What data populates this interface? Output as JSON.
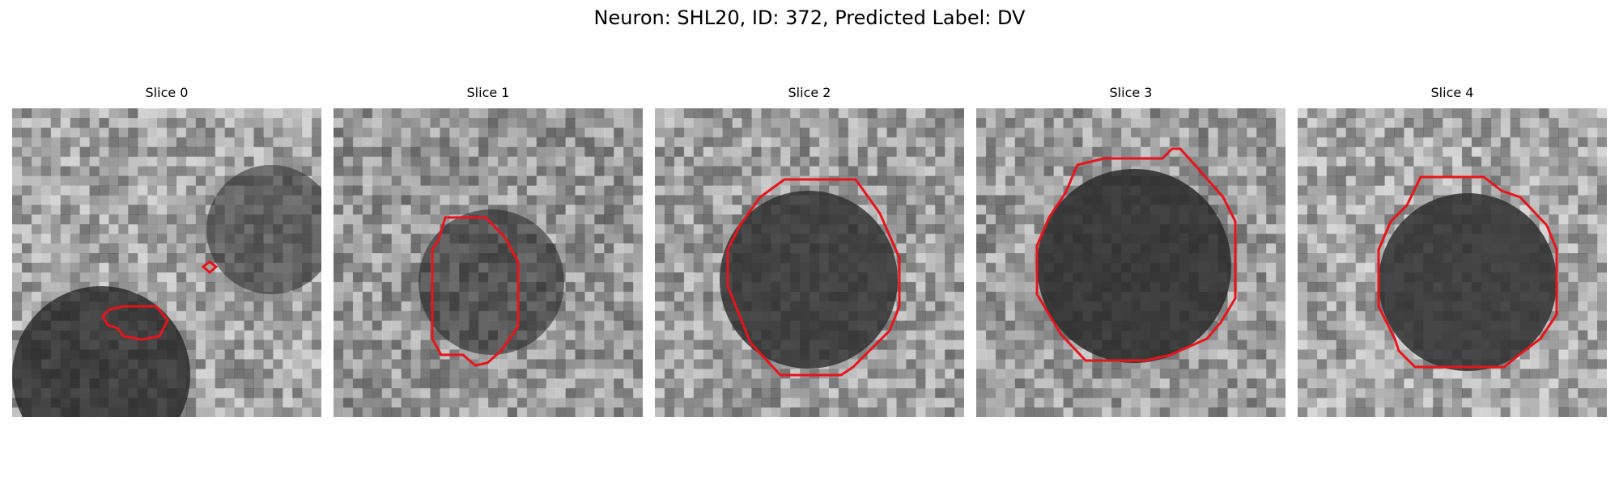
{
  "figure": {
    "title": "Neuron: SHL20, ID: 372, Predicted Label: DV"
  },
  "panels": [
    {
      "title": "Slice 0"
    },
    {
      "title": "Slice 1"
    },
    {
      "title": "Slice 2"
    },
    {
      "title": "Slice 3"
    },
    {
      "title": "Slice 4"
    }
  ],
  "colors": {
    "contour": "#e8141c",
    "background": "#ffffff"
  }
}
